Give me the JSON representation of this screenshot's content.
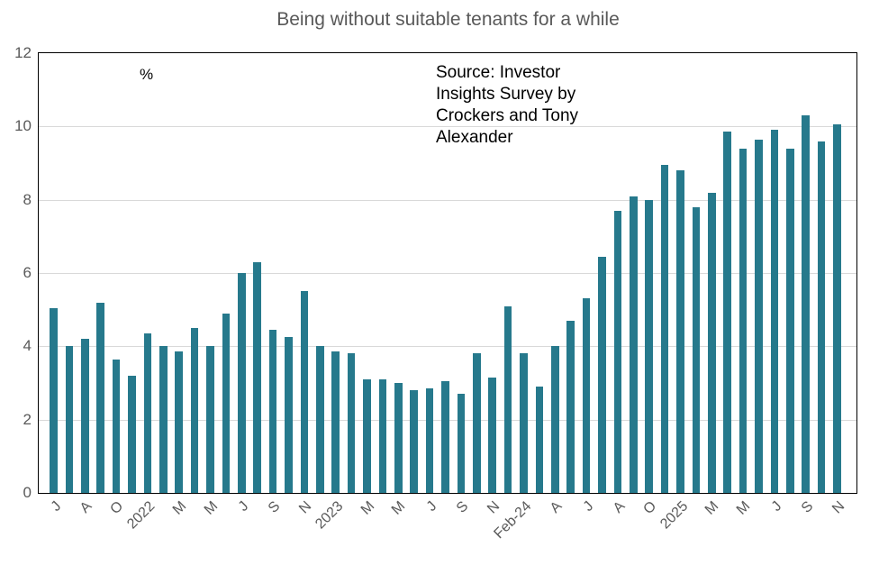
{
  "title": "Being without suitable tenants for a while",
  "y_axis": {
    "unit_label": "%",
    "ticks": [
      "12",
      "10",
      "8",
      "6",
      "4",
      "2",
      "0"
    ]
  },
  "source_note": {
    "lines": [
      "Source: Investor",
      "Insights Survey by",
      "Crockers and Tony",
      "Alexander"
    ]
  },
  "chart_data": {
    "type": "bar",
    "title": "Being without suitable tenants for a while",
    "xlabel": "",
    "ylabel": "%",
    "ylim": [
      0,
      12
    ],
    "grid": true,
    "gridline_values": [
      2,
      4,
      6,
      8,
      10
    ],
    "legend": false,
    "bar_color": "#26798C",
    "axis_color": "#000000",
    "gridline_color": "#D9D9D9",
    "tick_label_color": "#595959",
    "x_tick_interval": "every second bar, rotated 45 degrees",
    "categories": [
      "J",
      "",
      "A",
      "",
      "O",
      "",
      "2022",
      "",
      "M",
      "",
      "M",
      "",
      "J",
      "",
      "S",
      "",
      "N",
      "",
      "2023",
      "",
      "M",
      "",
      "M",
      "",
      "J",
      "",
      "S",
      "",
      "N",
      "",
      "Feb-24",
      "",
      "A",
      "",
      "J",
      "",
      "A",
      "",
      "O",
      "",
      "2025",
      "",
      "M",
      "",
      "M",
      "",
      "J",
      "",
      "S",
      "",
      "N"
    ],
    "values": [
      5.05,
      4.0,
      4.2,
      5.2,
      3.65,
      3.2,
      4.35,
      4.0,
      3.85,
      4.5,
      4.0,
      4.9,
      6.0,
      6.3,
      4.45,
      4.25,
      5.5,
      4.0,
      3.85,
      3.8,
      3.1,
      3.1,
      3.0,
      2.8,
      2.85,
      3.05,
      2.7,
      3.8,
      3.15,
      5.1,
      3.8,
      2.9,
      4.0,
      4.7,
      5.3,
      6.45,
      7.7,
      8.1,
      8.0,
      8.95,
      8.8,
      7.8,
      8.2,
      9.85,
      9.4,
      9.65,
      9.9,
      9.4,
      10.3,
      9.6,
      10.05
    ],
    "source": "Source: Investor Insights Survey by Crockers and Tony Alexander"
  }
}
